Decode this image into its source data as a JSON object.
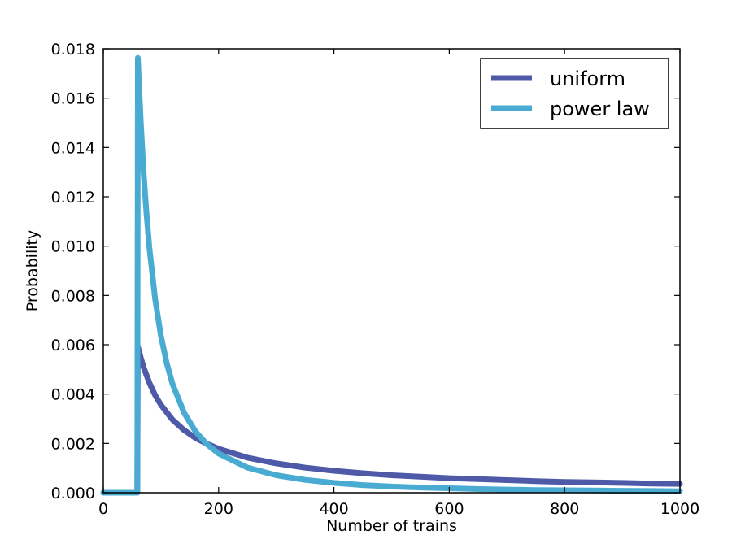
{
  "chart_data": {
    "type": "line",
    "title": "",
    "xlabel": "Number of trains",
    "ylabel": "Probability",
    "xlim": [
      0,
      1000
    ],
    "ylim": [
      0,
      0.018
    ],
    "xticks": [
      0,
      200,
      400,
      600,
      800,
      1000
    ],
    "yticks": [
      0.0,
      0.002,
      0.004,
      0.006,
      0.008,
      0.01,
      0.012,
      0.014,
      0.016,
      0.018
    ],
    "xtick_labels": [
      "0",
      "200",
      "400",
      "600",
      "800",
      "1000"
    ],
    "ytick_labels": [
      "0.000",
      "0.002",
      "0.004",
      "0.006",
      "0.008",
      "0.010",
      "0.012",
      "0.014",
      "0.016",
      "0.018"
    ],
    "grid": false,
    "legend_position": "top-right",
    "series": [
      {
        "name": "uniform",
        "color": "#4e5aa8",
        "x": [
          0,
          59,
          60,
          65,
          70,
          80,
          90,
          100,
          120,
          140,
          160,
          180,
          200,
          250,
          300,
          350,
          400,
          450,
          500,
          550,
          600,
          650,
          700,
          750,
          800,
          850,
          900,
          950,
          1000
        ],
        "y": [
          0,
          0,
          0.00593,
          0.00547,
          0.00508,
          0.00445,
          0.00395,
          0.00356,
          0.00296,
          0.00254,
          0.00222,
          0.00198,
          0.00178,
          0.00142,
          0.00119,
          0.00102,
          0.00089,
          0.00079,
          0.00071,
          0.00065,
          0.00059,
          0.00055,
          0.00051,
          0.00047,
          0.00044,
          0.00042,
          0.0004,
          0.00037,
          0.00036
        ]
      },
      {
        "name": "power law",
        "color": "#4aabd2",
        "x": [
          0,
          59,
          60,
          62,
          65,
          70,
          75,
          80,
          90,
          100,
          110,
          120,
          140,
          160,
          180,
          200,
          250,
          300,
          350,
          400,
          450,
          500,
          550,
          600,
          650,
          700,
          750,
          800,
          850,
          900,
          950,
          1000
        ],
        "y": [
          0,
          0,
          0.01763,
          0.0165,
          0.01502,
          0.01295,
          0.01128,
          0.00992,
          0.00784,
          0.00635,
          0.00525,
          0.00441,
          0.00324,
          0.00248,
          0.00196,
          0.00159,
          0.00102,
          0.00071,
          0.00052,
          0.0004,
          0.00031,
          0.00025,
          0.00021,
          0.00018,
          0.00015,
          0.00013,
          0.00011,
          0.0001,
          9e-05,
          8e-05,
          7e-05,
          6e-05
        ]
      }
    ]
  }
}
